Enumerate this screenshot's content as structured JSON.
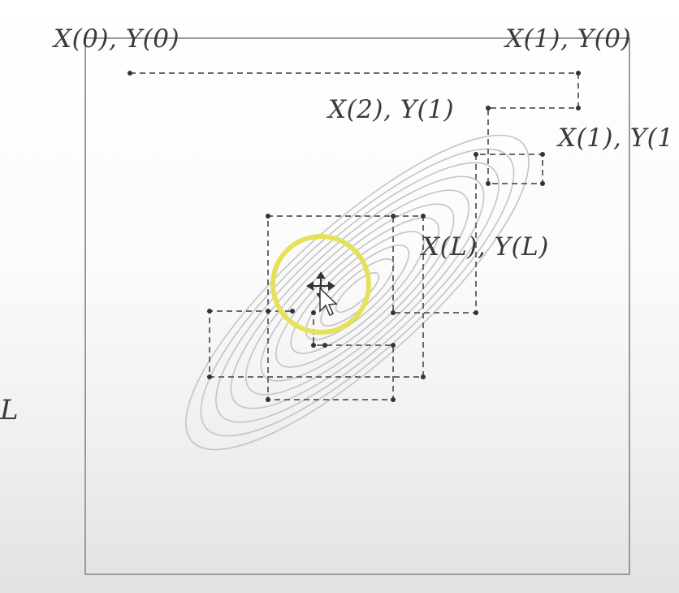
{
  "labels": {
    "x0_y0": "X(0), Y(0)",
    "x1_y0": "X(1), Y(0)",
    "x2_y1": "X(2), Y(1)",
    "x1_y1": "X(1), Y(1",
    "xl_yl": "X(L), Y(L)",
    "side_l": "L"
  },
  "colors": {
    "contour": "#c4c4c4",
    "path": "#6a6a6a",
    "node": "#333333",
    "highlight_ring": "#e4e25a",
    "frame": "#9a9a9a"
  },
  "icons": {
    "cursor": "move-cursor-icon"
  }
}
